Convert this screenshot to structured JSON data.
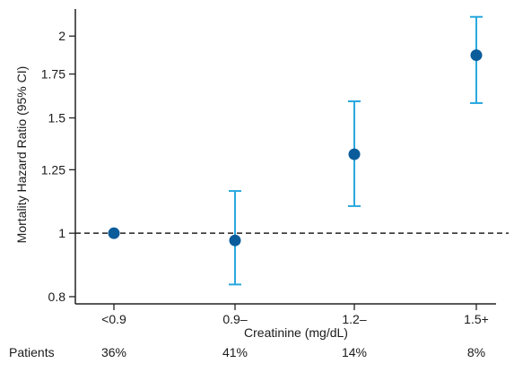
{
  "chart_data": {
    "type": "scatter",
    "title": "",
    "xlabel": "Creatinine (mg/dL)",
    "ylabel": "Mortality Hazard Ratio (95% CI)",
    "y_scale": "log",
    "ylim": [
      0.78,
      2.2
    ],
    "y_ticks": [
      0.8,
      1,
      1.25,
      1.5,
      1.75,
      2
    ],
    "y_tick_labels": [
      "0.8",
      "1",
      "1.25",
      "1.5",
      "1.75",
      "2"
    ],
    "reference_line": {
      "y": 1,
      "style": "dashed"
    },
    "categories": [
      "<0.9",
      "0.9–",
      "1.2–",
      "1.5+"
    ],
    "series": [
      {
        "values": [
          1.0,
          0.975,
          1.32,
          1.87
        ],
        "ci_lower": [
          null,
          0.835,
          1.1,
          1.58
        ],
        "ci_upper": [
          null,
          1.16,
          1.59,
          2.14
        ]
      }
    ],
    "point_color": "#0b5c9b",
    "errorbar_color": "#29a8df",
    "grid": false,
    "legend": "none",
    "patients": {
      "label": "Patients",
      "values": [
        "36%",
        "41%",
        "14%",
        "8%"
      ]
    }
  }
}
